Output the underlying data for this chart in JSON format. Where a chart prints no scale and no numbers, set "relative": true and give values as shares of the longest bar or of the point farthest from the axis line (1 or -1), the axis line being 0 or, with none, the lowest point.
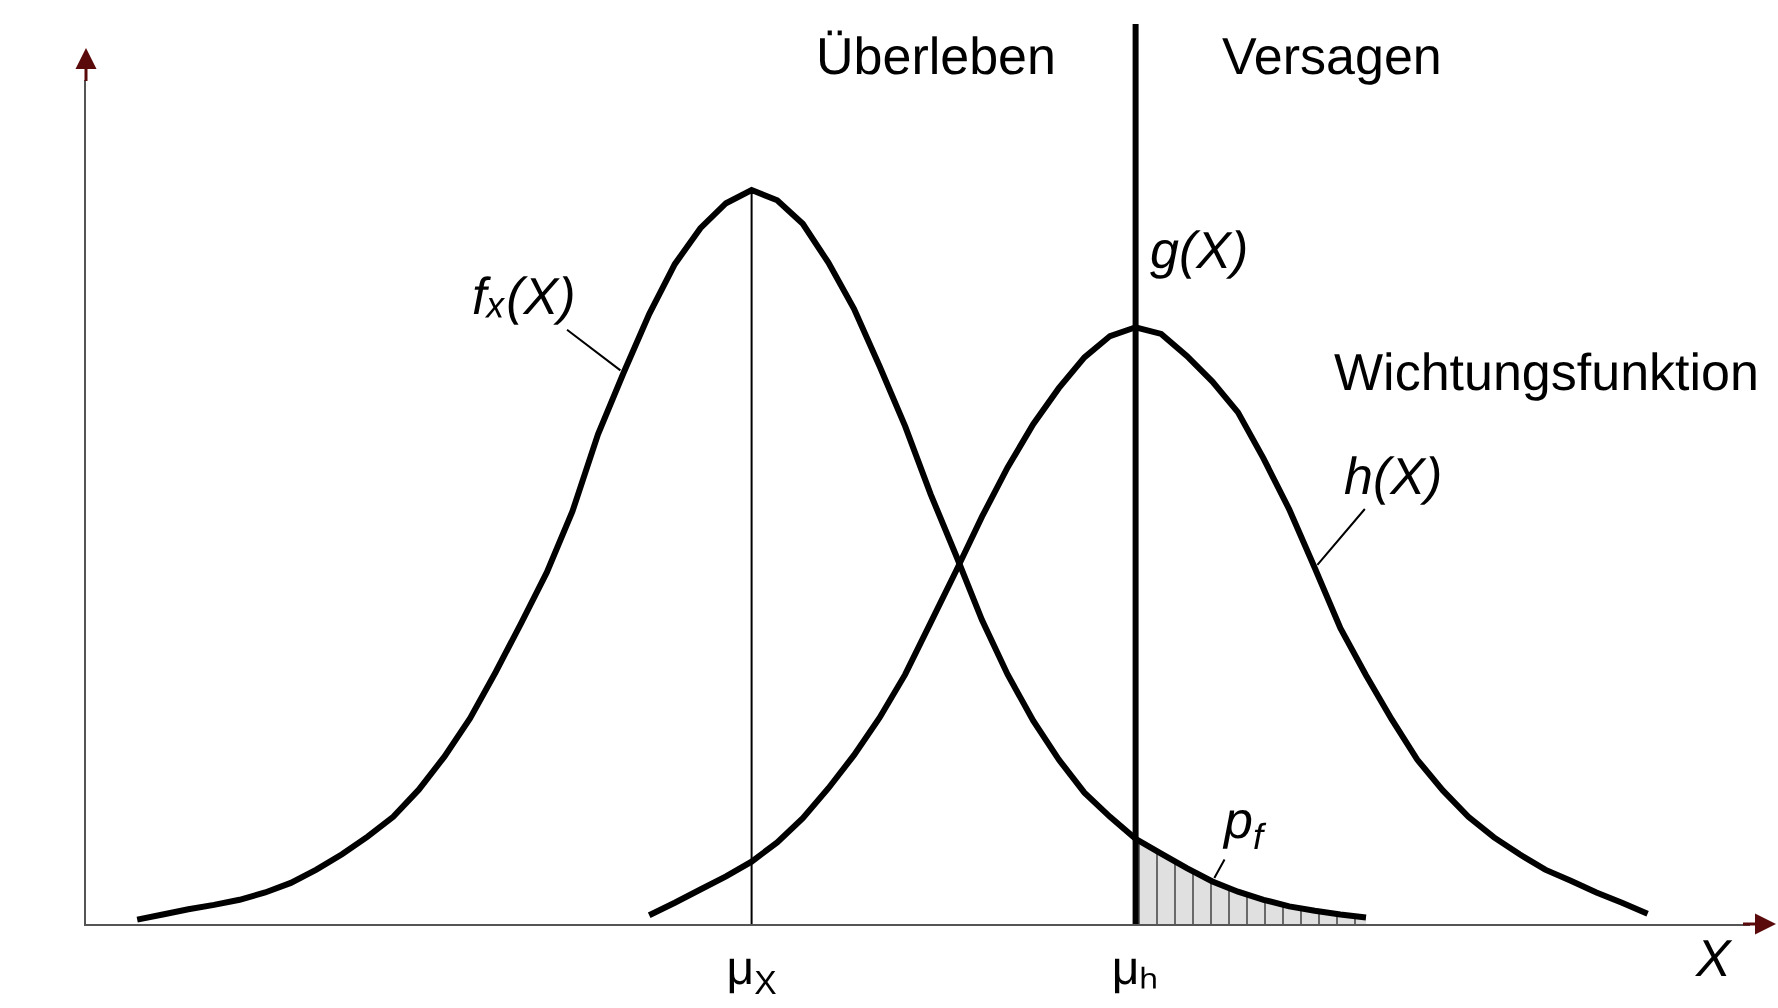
{
  "chart_data": {
    "type": "line",
    "relative": true,
    "categories": [
      null,
      null,
      null,
      null,
      null,
      null,
      null,
      null,
      null,
      null,
      null,
      null,
      null,
      null,
      null,
      null,
      null,
      null,
      null,
      null,
      null,
      null,
      null,
      null,
      null,
      null,
      "μ$_{X}$",
      null,
      null,
      null,
      null,
      null,
      null,
      null,
      null,
      null,
      null,
      null,
      null,
      null,
      null,
      "μₕ",
      null,
      null,
      null,
      null,
      null,
      null,
      null,
      null,
      null,
      null,
      null,
      null,
      null,
      null,
      null,
      null,
      null,
      null,
      null,
      null,
      null,
      null,
      null,
      null
    ],
    "xlabel": "X",
    "series": [
      {
        "name": "fₓ(X)",
        "color": "#000000",
        "values": [
          null,
          null,
          0.006,
          0.013,
          0.02,
          0.026,
          0.033,
          0.043,
          0.056,
          0.074,
          0.095,
          0.119,
          0.146,
          0.183,
          0.228,
          0.28,
          0.343,
          0.41,
          0.479,
          0.562,
          0.667,
          0.751,
          0.831,
          0.899,
          0.948,
          0.982,
          1.0,
          0.986,
          0.954,
          0.901,
          0.838,
          0.76,
          0.678,
          0.585,
          0.501,
          0.414,
          0.34,
          0.277,
          0.224,
          0.179,
          0.146,
          0.116,
          0.096,
          0.076,
          0.058,
          0.044,
          0.033,
          0.024,
          0.018,
          0.013,
          0.009,
          null,
          null,
          null,
          null,
          null,
          null,
          null,
          null,
          null,
          null,
          null,
          null,
          null,
          null,
          null
        ]
      },
      {
        "name": "h(X)",
        "color": "#000000",
        "values": [
          null,
          null,
          null,
          null,
          null,
          null,
          null,
          null,
          null,
          null,
          null,
          null,
          null,
          null,
          null,
          null,
          null,
          null,
          null,
          null,
          null,
          null,
          0.012,
          0.029,
          0.047,
          0.065,
          0.085,
          0.111,
          0.144,
          0.185,
          0.23,
          0.281,
          0.34,
          0.411,
          0.482,
          0.555,
          0.622,
          0.681,
          0.73,
          0.772,
          0.801,
          0.813,
          0.804,
          0.774,
          0.739,
          0.697,
          0.634,
          0.565,
          0.485,
          0.403,
          0.339,
          0.279,
          0.224,
          0.182,
          0.146,
          0.118,
          0.095,
          0.074,
          0.059,
          0.043,
          0.029,
          0.014,
          null,
          null,
          null,
          null
        ]
      },
      {
        "type": "area",
        "name": "p$_{f}$",
        "color": "#e0e0e0",
        "values": [
          null,
          null,
          null,
          null,
          null,
          null,
          null,
          null,
          null,
          null,
          null,
          null,
          null,
          null,
          null,
          null,
          null,
          null,
          null,
          null,
          null,
          null,
          null,
          null,
          null,
          null,
          null,
          null,
          null,
          null,
          null,
          null,
          null,
          null,
          null,
          null,
          null,
          null,
          null,
          null,
          null,
          0.116,
          0.096,
          0.076,
          0.058,
          0.044,
          0.033,
          0.024,
          0.018,
          0.013,
          0.009,
          null,
          null,
          null,
          null,
          null,
          null,
          null,
          null,
          null,
          null,
          null,
          null,
          null,
          null,
          null
        ]
      }
    ],
    "ref_lines": [
      {
        "axis": "x",
        "value": "μ$_{X}$"
      },
      {
        "axis": "x",
        "value": "μₕ",
        "label": "g(X)"
      }
    ],
    "annotations": [
      "Überleben",
      "Versagen",
      "Wichtungsfunktion"
    ],
    "legend": false,
    "grid": false
  }
}
